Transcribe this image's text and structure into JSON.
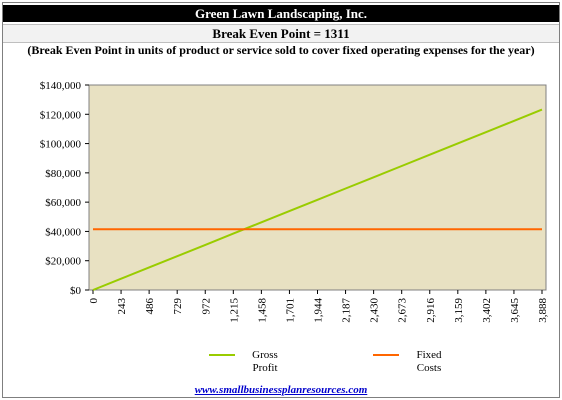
{
  "header": {
    "company": "Green Lawn Landscaping, Inc.",
    "break_even_line": "Break Even Point = 1311",
    "subtitle": "(Break Even Point in units of product or service sold to cover fixed operating expenses for the year)"
  },
  "footer": {
    "link_text": "www.smallbusinessplanresources.com"
  },
  "colors": {
    "plot_background": "#e8e1c2",
    "gross_profit": "#99cc00",
    "fixed_costs": "#ff6600"
  },
  "chart_data": {
    "type": "line",
    "x_tick_labels": [
      "0",
      "243",
      "486",
      "729",
      "972",
      "1,215",
      "1,458",
      "1,701",
      "1,944",
      "2,187",
      "2,430",
      "2,673",
      "2,916",
      "3,159",
      "3,402",
      "3,645",
      "3,888"
    ],
    "y_tick_labels": [
      "$0",
      "$20,000",
      "$40,000",
      "$60,000",
      "$80,000",
      "$100,000",
      "$120,000",
      "$140,000"
    ],
    "ylim": [
      0,
      140000
    ],
    "xlim": [
      0,
      3888
    ],
    "grid": false,
    "legend_position": "bottom",
    "series": [
      {
        "name": "Gross Profit",
        "legend_lines": [
          "Gross",
          "Profit"
        ],
        "x": [
          0,
          243,
          486,
          729,
          972,
          1215,
          1458,
          1701,
          1944,
          2187,
          2430,
          2673,
          2916,
          3159,
          3402,
          3645,
          3888
        ],
        "values": [
          0,
          7700,
          15400,
          23100,
          30800,
          38500,
          46200,
          53900,
          61600,
          69300,
          77000,
          84700,
          92400,
          100100,
          107800,
          115500,
          123200
        ]
      },
      {
        "name": "Fixed Costs",
        "legend_lines": [
          "Fixed",
          "Costs"
        ],
        "x": [
          0,
          3888
        ],
        "values": [
          41500,
          41500
        ]
      }
    ]
  }
}
